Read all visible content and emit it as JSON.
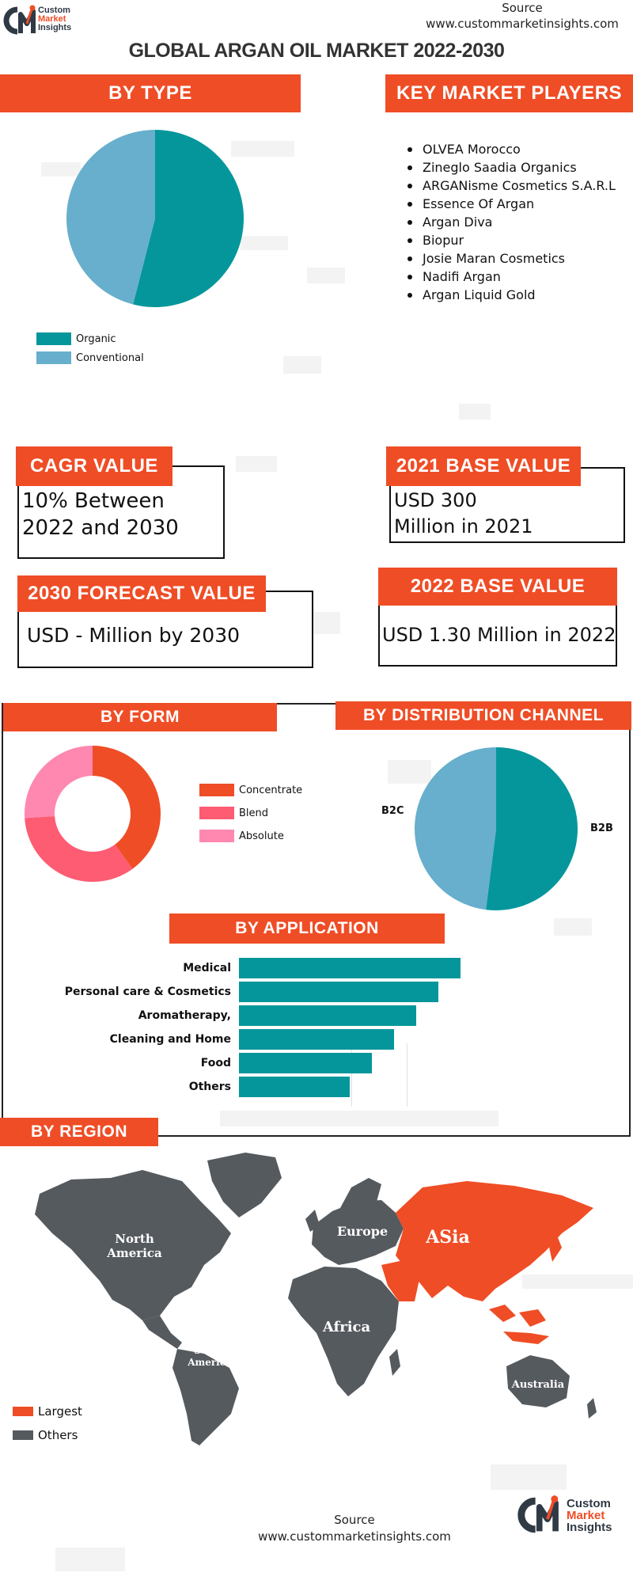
{
  "header": {
    "logo_line1": "Custom",
    "logo_line2": "Market",
    "logo_line3": "Insights",
    "source_label": "Source",
    "source_url": "www.custommarketinsights.com",
    "title": "GLOBAL ARGAN OIL MARKET 2022-2030"
  },
  "by_type": {
    "heading": "BY  TYPE",
    "chart_data": {
      "type": "pie",
      "labels": [
        "Organic",
        "Conventional"
      ],
      "values": [
        54,
        46
      ],
      "colors": [
        "#05969b",
        "#67afcc"
      ]
    }
  },
  "key_players": {
    "heading": "KEY MARKET PLAYERS",
    "items": [
      "OLVEA Morocco",
      "Zineglo Saadia Organics",
      "ARGANisme Cosmetics S.A.R.L",
      "Essence Of Argan",
      "Argan Diva",
      "Biopur",
      "Josie Maran Cosmetics",
      "Nadifi Argan",
      "Argan Liquid Gold"
    ]
  },
  "stats": {
    "cagr_heading": "CAGR VALUE",
    "cagr_value": "10% Between 2022 and 2030",
    "base2021_heading": "2021 BASE VALUE",
    "base2021_value": "USD 300 Million in 2021",
    "forecast_heading": "2030 FORECAST  VALUE",
    "forecast_value": "USD - Million by 2030",
    "base2022_heading": "2022 BASE VALUE",
    "base2022_value": "USD 1.30 Million in 2022"
  },
  "by_form": {
    "heading": "BY  FORM",
    "chart_data": {
      "type": "pie",
      "donut": true,
      "labels": [
        "Concentrate",
        "Blend",
        "Absolute"
      ],
      "values": [
        40,
        34,
        26
      ],
      "colors": [
        "#ef4d26",
        "#fd5c73",
        "#fe88b0"
      ]
    }
  },
  "by_distribution": {
    "heading": "BY  DISTRIBUTION CHANNEL",
    "chart_data": {
      "type": "pie",
      "labels": [
        "B2B",
        "B2C"
      ],
      "values": [
        52,
        48
      ],
      "colors": [
        "#05969b",
        "#67afcc"
      ]
    }
  },
  "by_application": {
    "heading": "BY  APPLICATION",
    "chart_data": {
      "type": "bar",
      "orientation": "horizontal",
      "categories": [
        "Medical",
        "Personal care & Cosmetics",
        "Aromatherapy,",
        "Cleaning and Home",
        "Food",
        "Others"
      ],
      "values": [
        100,
        90,
        80,
        70,
        60,
        50
      ],
      "color": "#05969b"
    }
  },
  "by_region": {
    "heading": "BY REGION",
    "regions": {
      "north_america": "North America",
      "south_america": "South America",
      "europe": "Europe",
      "africa": "Africa",
      "asia": "ASia",
      "australia": "Australia"
    },
    "largest": "Asia",
    "legend": [
      {
        "label": "Largest",
        "color": "#ef4d26"
      },
      {
        "label": "Others",
        "color": "#555a5f"
      }
    ]
  },
  "footer": {
    "source_label": "Source",
    "source_url": "www.custommarketinsights.com",
    "logo_line1": "Custom",
    "logo_line2": "Market",
    "logo_line3": "Insights"
  }
}
